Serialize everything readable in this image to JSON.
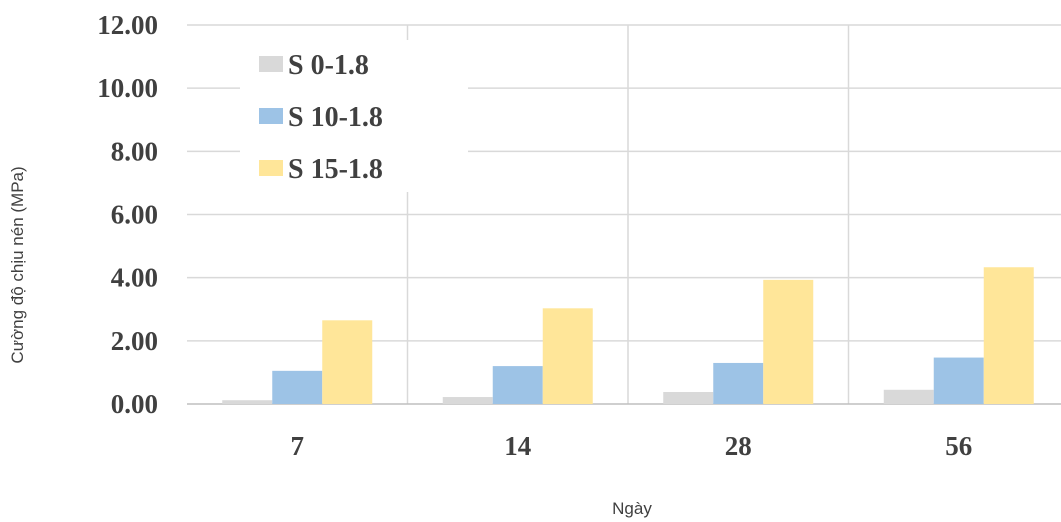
{
  "chart_data": {
    "type": "bar",
    "xlabel": "Ngày",
    "ylabel": "Cường độ chịu nén (MPa)",
    "categories": [
      "7",
      "14",
      "28",
      "56"
    ],
    "ylim": [
      0,
      12
    ],
    "yticks": [
      "0.00",
      "2.00",
      "4.00",
      "6.00",
      "8.00",
      "10.00",
      "12.00"
    ],
    "grid": true,
    "legend_position": "top-left",
    "series": [
      {
        "name": "S 0-1.8",
        "color": "#d9d9d9",
        "values": [
          0.12,
          0.22,
          0.38,
          0.45
        ]
      },
      {
        "name": "S 10-1.8",
        "color": "#9dc3e6",
        "values": [
          1.05,
          1.2,
          1.3,
          1.47
        ]
      },
      {
        "name": "S 15-1.8",
        "color": "#ffe699",
        "values": [
          2.65,
          3.03,
          3.93,
          4.33
        ]
      }
    ]
  }
}
